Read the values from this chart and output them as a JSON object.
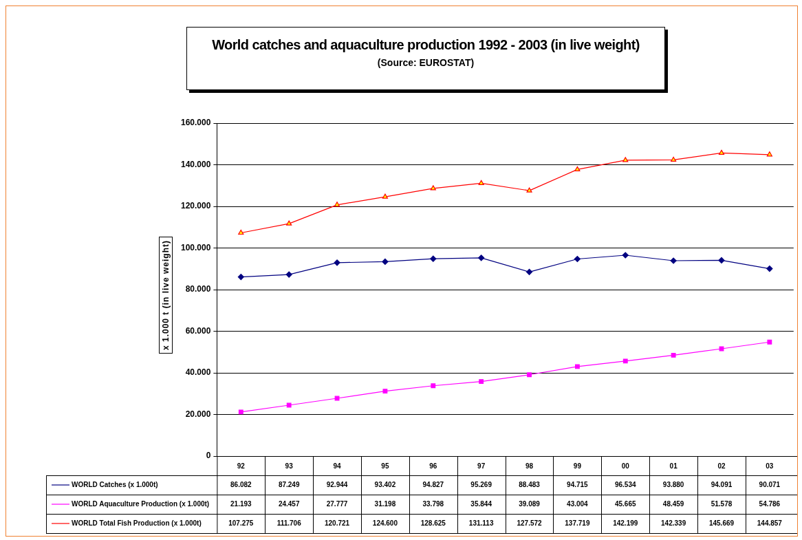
{
  "chart_data": {
    "type": "line",
    "title": "World catches and aquaculture production 1992 - 2003 (in live weight)",
    "subtitle": "(Source: EUROSTAT)",
    "ylabel": "x 1.000 t (in live weight)",
    "categories": [
      "92",
      "93",
      "94",
      "95",
      "96",
      "97",
      "98",
      "99",
      "00",
      "01",
      "02",
      "03"
    ],
    "series": [
      {
        "name": "WORLD Catches (x 1.000t)",
        "color": "#000080",
        "marker": "diamond",
        "values": [
          86082,
          87249,
          92944,
          93402,
          94827,
          95269,
          88483,
          94715,
          96534,
          93880,
          94091,
          90071
        ],
        "value_labels": [
          "86.082",
          "87.249",
          "92.944",
          "93.402",
          "94.827",
          "95.269",
          "88.483",
          "94.715",
          "96.534",
          "93.880",
          "94.091",
          "90.071"
        ]
      },
      {
        "name": "WORLD Aquaculture Production (x 1.000t)",
        "color": "#ff00ff",
        "marker": "square",
        "values": [
          21193,
          24457,
          27777,
          31198,
          33798,
          35844,
          39089,
          43004,
          45665,
          48459,
          51578,
          54786
        ],
        "value_labels": [
          "21.193",
          "24.457",
          "27.777",
          "31.198",
          "33.798",
          "35.844",
          "39.089",
          "43.004",
          "45.665",
          "48.459",
          "51.578",
          "54.786"
        ]
      },
      {
        "name": "WORLD Total Fish Production (x 1.000t)",
        "color": "#ff0000",
        "marker": "triangle",
        "values": [
          107275,
          111706,
          120721,
          124600,
          128625,
          131113,
          127572,
          137719,
          142199,
          142339,
          145669,
          144857
        ],
        "value_labels": [
          "107.275",
          "111.706",
          "120.721",
          "124.600",
          "128.625",
          "131.113",
          "127.572",
          "137.719",
          "142.199",
          "142.339",
          "145.669",
          "144.857"
        ]
      }
    ],
    "ylim": [
      0,
      160000
    ],
    "yticks": [
      0,
      {
        "value": 20000,
        "label": "20.000"
      },
      {
        "value": 40000,
        "label": "40.000"
      },
      {
        "value": 60000,
        "label": "60.000"
      },
      {
        "value": 80000,
        "label": "80.000"
      },
      {
        "value": 100000,
        "label": "100.000"
      },
      {
        "value": 120000,
        "label": "120.000"
      },
      {
        "value": 140000,
        "label": "140.000"
      },
      {
        "value": 160000,
        "label": "160.000"
      }
    ],
    "grid": "y",
    "legend": "bottom",
    "line_style": "solid"
  }
}
